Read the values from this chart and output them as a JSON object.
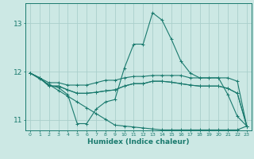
{
  "xlabel": "Humidex (Indice chaleur)",
  "bg_color": "#cce8e4",
  "grid_color": "#aacfcc",
  "line_color": "#1a7a6e",
  "xlim": [
    -0.5,
    23.5
  ],
  "ylim": [
    10.78,
    13.42
  ],
  "yticks": [
    11,
    12,
    13
  ],
  "xticks": [
    0,
    1,
    2,
    3,
    4,
    5,
    6,
    7,
    8,
    9,
    10,
    11,
    12,
    13,
    14,
    15,
    16,
    17,
    18,
    19,
    20,
    21,
    22,
    23
  ],
  "series": [
    [
      11.97,
      11.87,
      11.72,
      11.67,
      11.52,
      10.92,
      10.92,
      11.22,
      11.37,
      11.42,
      12.07,
      12.57,
      12.57,
      13.22,
      13.07,
      12.67,
      12.22,
      11.97,
      11.87,
      11.87,
      11.87,
      11.52,
      11.07,
      10.87
    ],
    [
      11.97,
      11.87,
      11.77,
      11.77,
      11.72,
      11.72,
      11.72,
      11.77,
      11.82,
      11.82,
      11.87,
      11.9,
      11.9,
      11.92,
      11.92,
      11.92,
      11.92,
      11.87,
      11.87,
      11.87,
      11.87,
      11.87,
      11.8,
      10.87
    ],
    [
      11.97,
      11.87,
      11.7,
      11.7,
      11.62,
      11.55,
      11.55,
      11.57,
      11.6,
      11.62,
      11.7,
      11.75,
      11.75,
      11.8,
      11.8,
      11.78,
      11.75,
      11.72,
      11.7,
      11.7,
      11.7,
      11.65,
      11.55,
      10.87
    ],
    [
      11.97,
      11.87,
      11.7,
      11.7,
      11.62,
      11.55,
      11.55,
      11.57,
      11.6,
      11.62,
      11.7,
      11.75,
      11.75,
      11.8,
      11.8,
      11.78,
      11.75,
      11.72,
      11.7,
      11.7,
      11.7,
      11.65,
      11.55,
      10.87
    ]
  ],
  "linear_line": [
    11.97,
    11.85,
    11.73,
    11.61,
    11.49,
    11.37,
    11.25,
    11.13,
    11.01,
    10.89,
    10.87,
    10.85,
    10.83,
    10.81,
    10.79,
    10.79,
    10.79,
    10.79,
    10.79,
    10.79,
    10.79,
    10.79,
    10.79,
    10.87
  ]
}
